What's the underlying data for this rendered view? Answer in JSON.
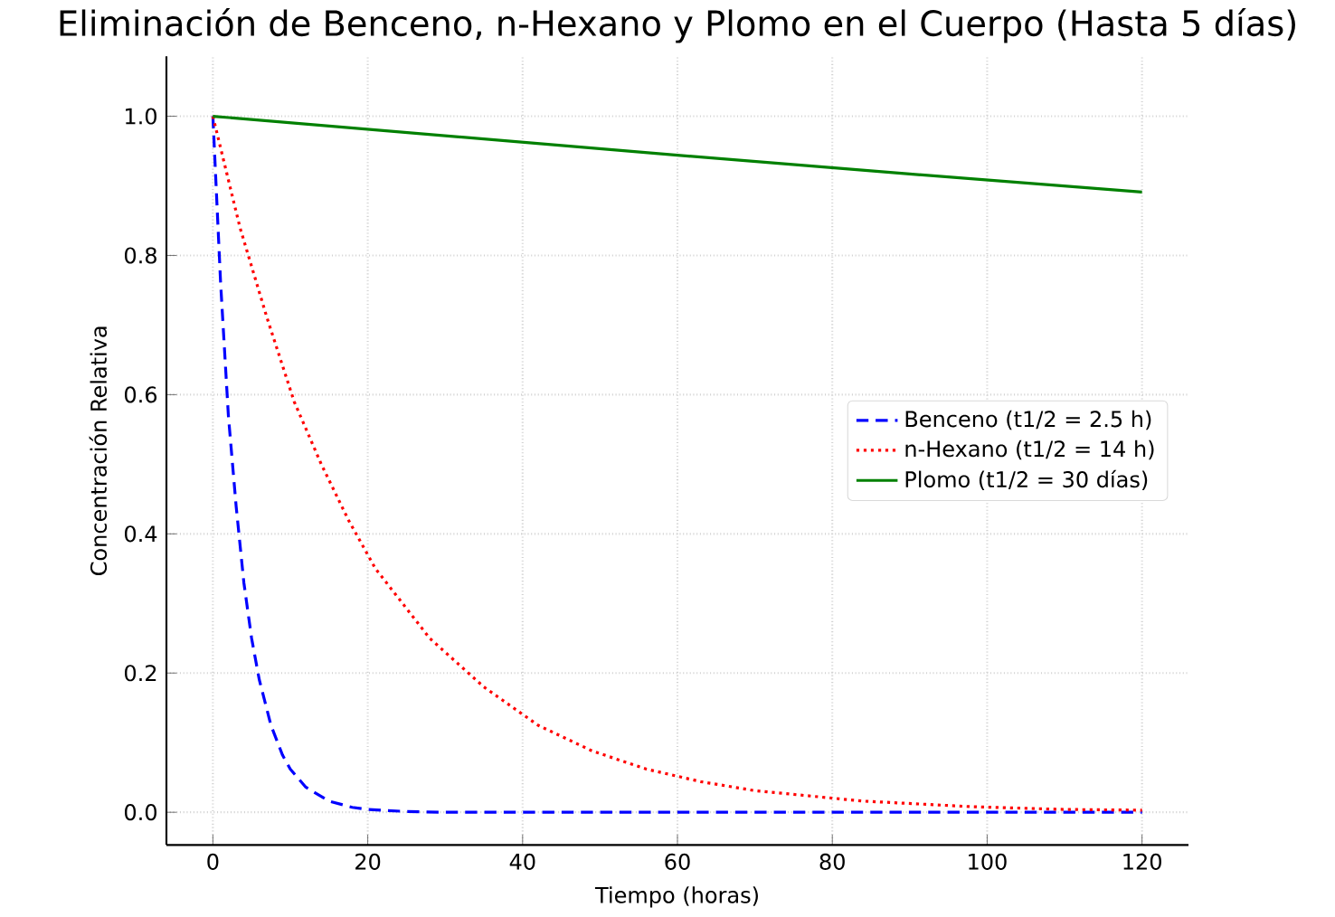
{
  "chart_data": {
    "type": "line",
    "title": "Eliminación de Benceno, n-Hexano y Plomo en el Cuerpo (Hasta 5 días)",
    "xlabel": "Tiempo (horas)",
    "ylabel": "Concentración Relativa",
    "xlim": [
      -6,
      126
    ],
    "ylim": [
      -0.047,
      1.086
    ],
    "xticks": [
      0,
      20,
      40,
      60,
      80,
      100,
      120
    ],
    "yticks": [
      {
        "value": 0,
        "label": "0.0"
      },
      {
        "value": 0.2,
        "label": "0.2"
      },
      {
        "value": 0.4,
        "label": "0.4"
      },
      {
        "value": 0.6,
        "label": "0.6"
      },
      {
        "value": 0.8,
        "label": "0.8"
      },
      {
        "value": 1,
        "label": "1.0"
      }
    ],
    "grid": true,
    "legend": "right",
    "marker": "none",
    "series": [
      {
        "name": "Benceno (t1/2 = 2.5 h)",
        "color": "#0000ff",
        "line_style": "dashed",
        "x": [
          0,
          1,
          2,
          3,
          4,
          5,
          6,
          7.5,
          9,
          10,
          12,
          15,
          18,
          20,
          25,
          30,
          40,
          60,
          80,
          100,
          120
        ],
        "values": [
          1,
          0.76,
          0.57,
          0.44,
          0.33,
          0.25,
          0.19,
          0.125,
          0.082,
          0.062,
          0.036,
          0.016,
          0.007,
          0.004,
          0.001,
          0,
          0,
          0,
          0,
          0,
          0
        ]
      },
      {
        "name": "n-Hexano (t1/2 = 14 h)",
        "color": "#ff0000",
        "line_style": "dotted",
        "x": [
          0,
          3.5,
          7,
          10.5,
          14,
          17.5,
          21,
          28,
          35,
          42,
          49,
          56,
          63,
          70,
          84,
          98,
          110,
          120
        ],
        "values": [
          1,
          0.84,
          0.71,
          0.59,
          0.5,
          0.42,
          0.35,
          0.25,
          0.18,
          0.125,
          0.088,
          0.062,
          0.044,
          0.031,
          0.016,
          0.008,
          0.004,
          0.003
        ]
      },
      {
        "name": "Plomo (t1/2 = 30 días)",
        "color": "#008000",
        "line_style": "solid",
        "x": [
          0,
          30,
          60,
          90,
          120
        ],
        "values": [
          1,
          0.972,
          0.944,
          0.917,
          0.891
        ]
      }
    ]
  }
}
